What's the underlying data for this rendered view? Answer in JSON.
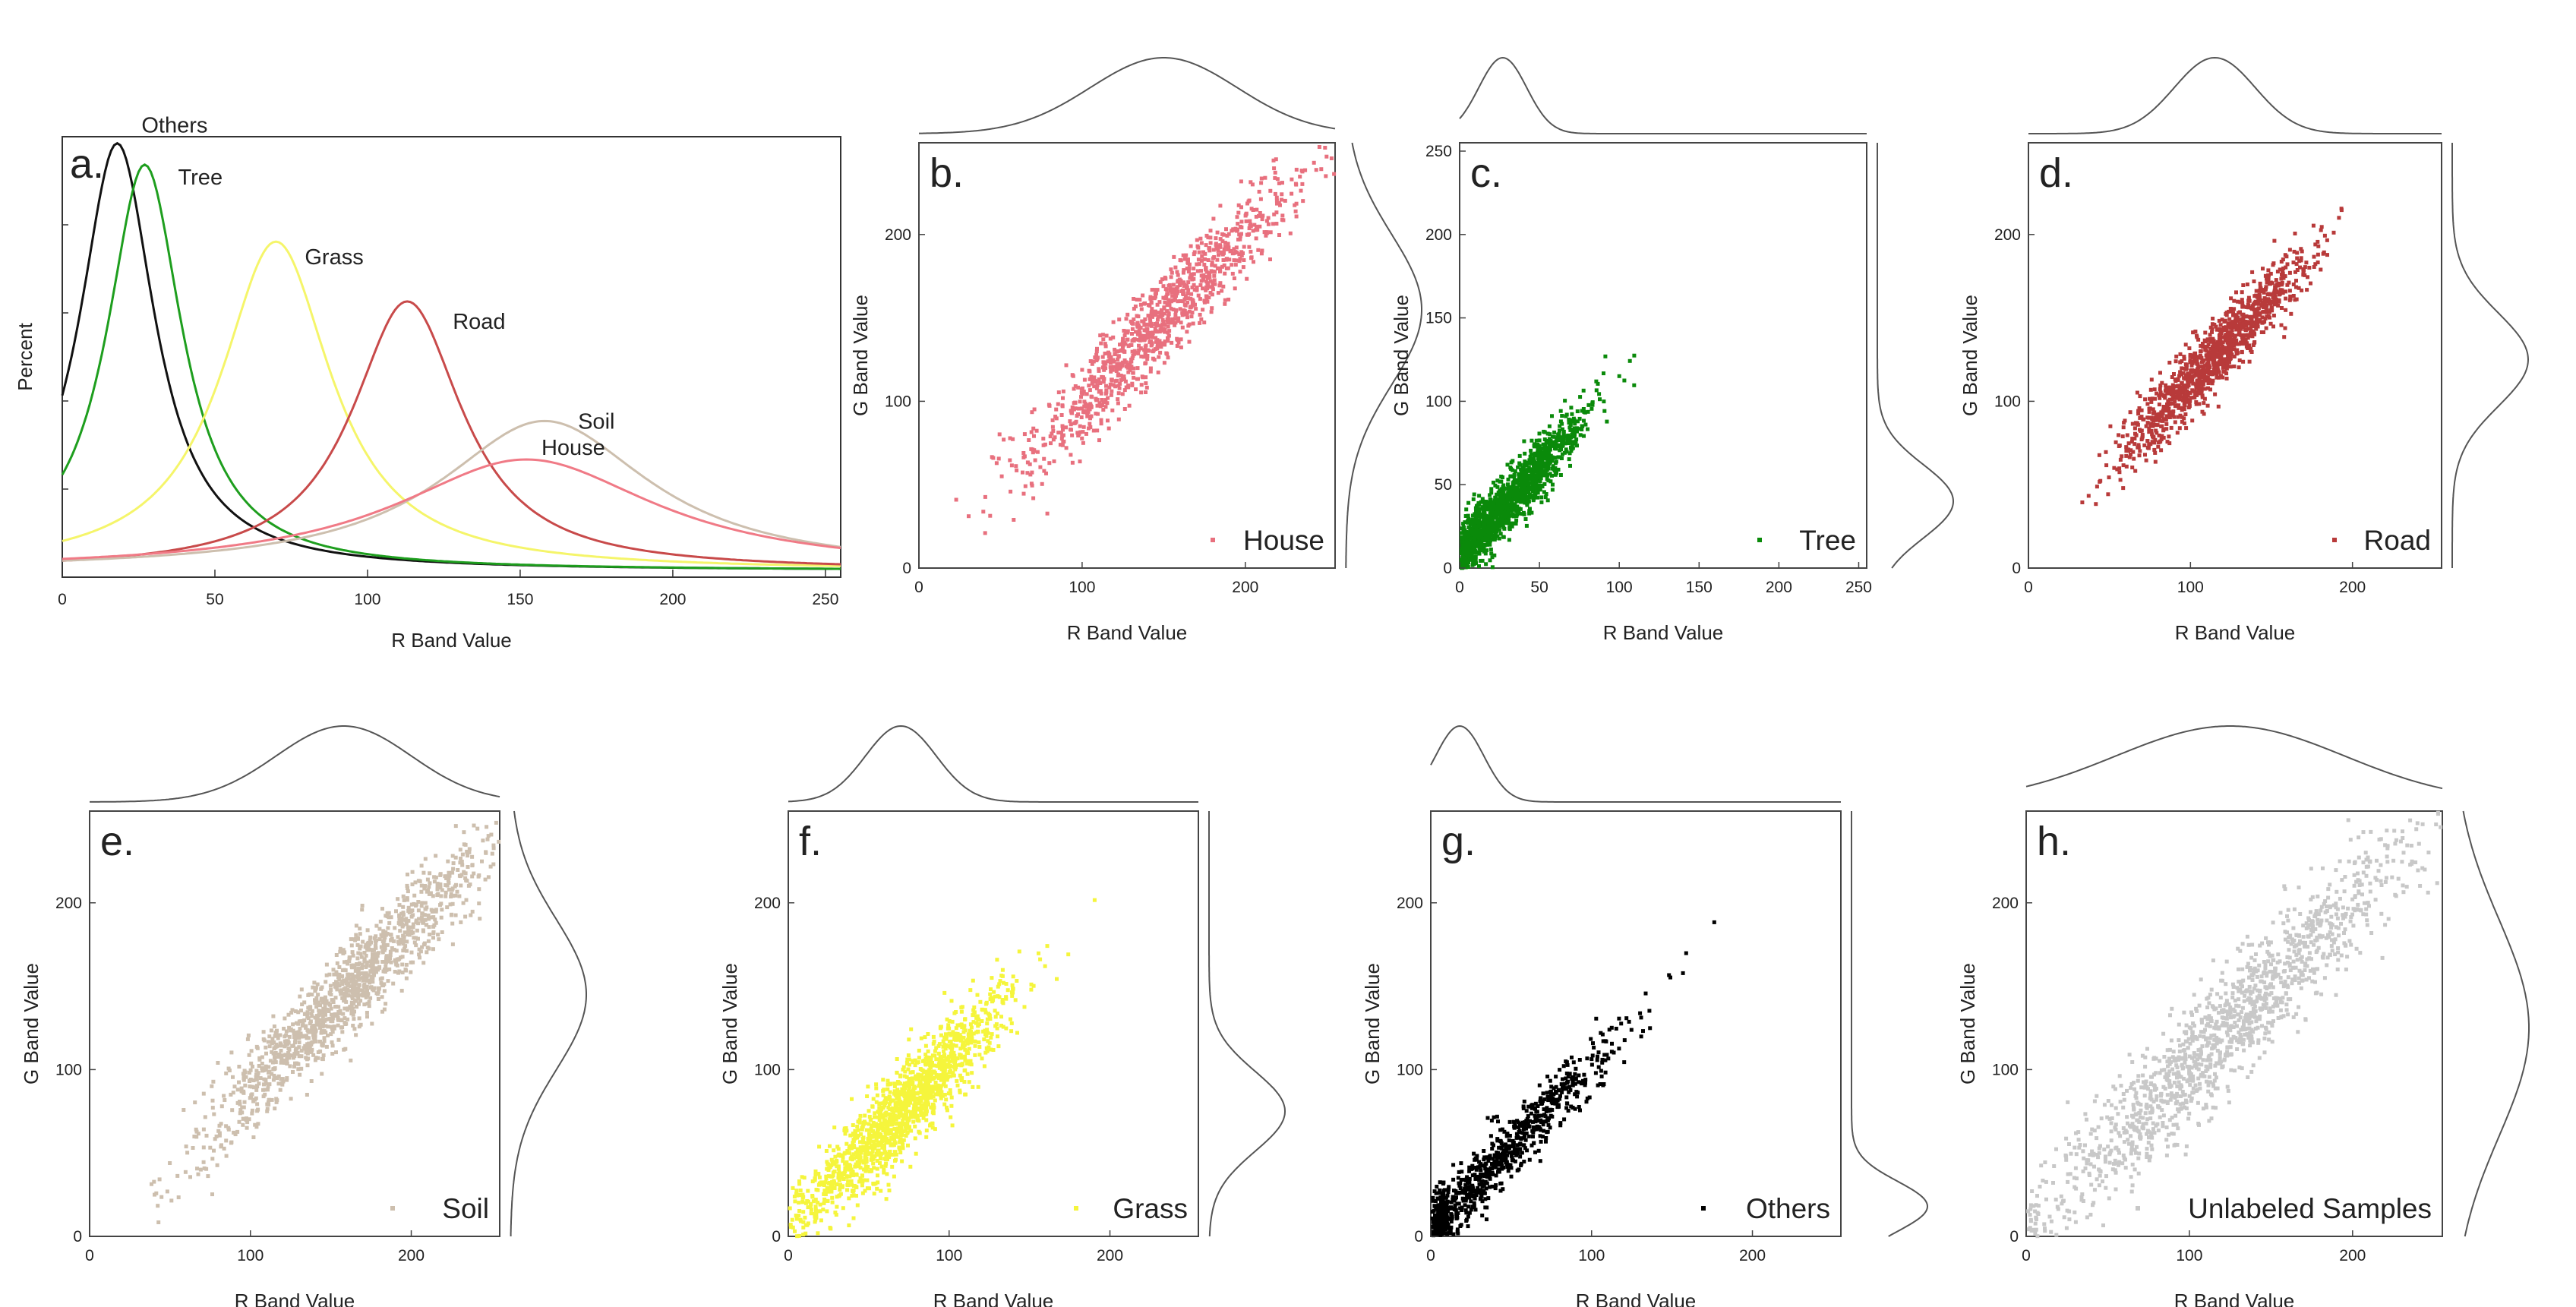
{
  "figure": {
    "panel_count": 8
  },
  "chart_data": [
    {
      "id": "a",
      "type": "line",
      "panel_label": "a.",
      "xlabel": "R Band Value",
      "ylabel": "Percent",
      "xlim": [
        0,
        255
      ],
      "xticks": [
        0,
        50,
        100,
        150,
        200,
        250
      ],
      "yticks_visible": false,
      "series": [
        {
          "name": "Others",
          "color": "#111111",
          "peak_x": 18,
          "peak_height": 1.0,
          "width": 15
        },
        {
          "name": "Tree",
          "color": "#1e9e1e",
          "peak_x": 27,
          "peak_height": 0.95,
          "width": 15
        },
        {
          "name": "Grass",
          "color": "#f5f56a",
          "peak_x": 70,
          "peak_height": 0.77,
          "width": 22
        },
        {
          "name": "Road",
          "color": "#c84a4a",
          "peak_x": 113,
          "peak_height": 0.63,
          "width": 22
        },
        {
          "name": "Soil",
          "color": "#cdbfae",
          "peak_x": 158,
          "peak_height": 0.35,
          "width": 42
        },
        {
          "name": "House",
          "color": "#f07a86",
          "peak_x": 152,
          "peak_height": 0.26,
          "width": 52
        }
      ]
    },
    {
      "id": "b",
      "type": "scatter",
      "panel_label": "b.",
      "legend": "House",
      "color": "#e8707e",
      "xlabel": "R Band Value",
      "ylabel": "G Band Value",
      "xlim": [
        0,
        255
      ],
      "ylim": [
        0,
        255
      ],
      "xticks": [
        0,
        100,
        200
      ],
      "yticks": [
        0,
        100,
        200
      ],
      "n_points": 1100,
      "mean_r": 150,
      "sd_r": 45,
      "slope": 1.0,
      "intercept": 0,
      "noise": 13,
      "x_margin_mean": 150,
      "x_margin_sd": 45,
      "y_margin_mean": 155,
      "y_margin_sd": 45,
      "show_x_marginal": true,
      "show_y_marginal": true
    },
    {
      "id": "c",
      "type": "scatter",
      "panel_label": "c.",
      "legend": "Tree",
      "color": "#0a8a0a",
      "xlabel": "R Band Value",
      "ylabel": "G Band Value",
      "xlim": [
        0,
        255
      ],
      "ylim": [
        0,
        255
      ],
      "xticks": [
        0,
        50,
        100,
        150,
        200,
        250
      ],
      "yticks": [
        0,
        50,
        100,
        150,
        200,
        250
      ],
      "n_points": 1400,
      "mean_r": 30,
      "sd_r": 24,
      "slope": 1.05,
      "intercept": 8,
      "noise": 9,
      "x_margin_mean": 27,
      "x_margin_sd": 15,
      "y_margin_mean": 40,
      "y_margin_sd": 22,
      "show_x_marginal": true,
      "show_y_marginal": true
    },
    {
      "id": "d",
      "type": "scatter",
      "panel_label": "d.",
      "legend": "Road",
      "color": "#b83a3a",
      "xlabel": "R Band Value",
      "ylabel": "G Band Value",
      "xlim": [
        0,
        255
      ],
      "ylim": [
        0,
        255
      ],
      "xticks": [
        0,
        100,
        200
      ],
      "yticks": [
        0,
        100,
        200
      ],
      "n_points": 1200,
      "mean_r": 115,
      "sd_r": 28,
      "slope": 1.0,
      "intercept": 12,
      "noise": 10,
      "x_margin_mean": 115,
      "x_margin_sd": 25,
      "y_margin_mean": 125,
      "y_margin_sd": 28,
      "show_x_marginal": true,
      "show_y_marginal": true
    },
    {
      "id": "e",
      "type": "scatter",
      "panel_label": "e.",
      "legend": "Soil",
      "color": "#cdbfae",
      "xlabel": "R Band Value",
      "ylabel": "G Band Value",
      "xlim": [
        0,
        255
      ],
      "ylim": [
        0,
        255
      ],
      "xticks": [
        0,
        100,
        200
      ],
      "yticks": [
        0,
        100,
        200
      ],
      "n_points": 1300,
      "mean_r": 160,
      "sd_r": 45,
      "slope": 0.98,
      "intercept": -10,
      "noise": 14,
      "x_margin_mean": 158,
      "x_margin_sd": 42,
      "y_margin_mean": 145,
      "y_margin_sd": 45,
      "show_x_marginal": true,
      "show_y_marginal": true
    },
    {
      "id": "f",
      "type": "scatter",
      "panel_label": "f.",
      "legend": "Grass",
      "color": "#f5f53c",
      "xlabel": "R Band Value",
      "ylabel": "G Band Value",
      "xlim": [
        0,
        255
      ],
      "ylim": [
        0,
        255
      ],
      "xticks": [
        0,
        100,
        200
      ],
      "yticks": [
        0,
        100,
        200
      ],
      "n_points": 1500,
      "mean_r": 70,
      "sd_r": 32,
      "slope": 1.0,
      "intercept": 5,
      "noise": 13,
      "x_margin_mean": 70,
      "x_margin_sd": 22,
      "y_margin_mean": 75,
      "y_margin_sd": 24,
      "show_x_marginal": true,
      "show_y_marginal": true
    },
    {
      "id": "g",
      "type": "scatter",
      "panel_label": "g.",
      "legend": "Others",
      "color": "#000000",
      "xlabel": "R Band Value",
      "ylabel": "G Band Value",
      "xlim": [
        0,
        255
      ],
      "ylim": [
        0,
        255
      ],
      "xticks": [
        0,
        100,
        200
      ],
      "yticks": [
        0,
        100,
        200
      ],
      "n_points": 900,
      "mean_r": 35,
      "sd_r": 40,
      "slope": 1.0,
      "intercept": 3,
      "noise": 9,
      "x_margin_mean": 18,
      "x_margin_sd": 15,
      "y_margin_mean": 18,
      "y_margin_sd": 15,
      "show_x_marginal": true,
      "show_y_marginal": true
    },
    {
      "id": "h",
      "type": "scatter",
      "panel_label": "h.",
      "legend": "Unlabeled Samples",
      "color": "#c8c8c8",
      "xlabel": "R Band Value",
      "ylabel": "G Band Value",
      "xlim": [
        0,
        255
      ],
      "ylim": [
        0,
        255
      ],
      "xticks": [
        0,
        100,
        200
      ],
      "yticks": [
        0,
        100,
        200
      ],
      "n_points": 1400,
      "mean_r": 125,
      "sd_r": 62,
      "slope": 1.0,
      "intercept": 0,
      "noise": 18,
      "x_margin_mean": 125,
      "x_margin_sd": 70,
      "y_margin_mean": 125,
      "y_margin_sd": 65,
      "show_x_marginal": true,
      "show_y_marginal": true
    }
  ]
}
